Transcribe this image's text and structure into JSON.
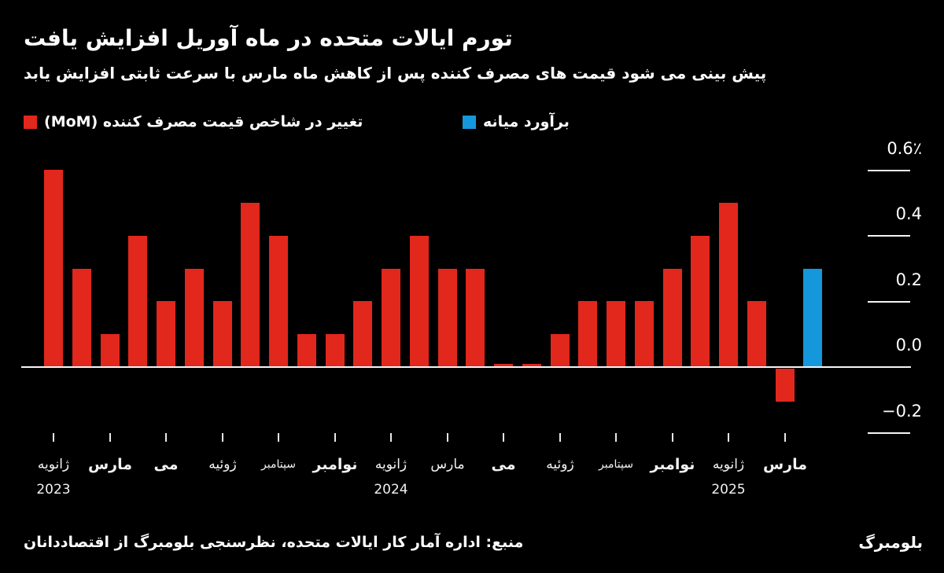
{
  "page": {
    "background": "#000000",
    "accent_red": "#e2271d",
    "accent_blue": "#1597dc"
  },
  "header": {
    "title": "تورم ایالات متحده در ماه آوریل افزایش یافت",
    "subtitle": "پیش بینی می شود قیمت های مصرف کننده پس از کاهش ماه مارس با سرعت ثابتی افزایش یابد"
  },
  "legend": {
    "items": [
      {
        "key": "mom",
        "label": "تغییر در شاخص قیمت مصرف کننده (MoM)",
        "color": "#e2271d"
      },
      {
        "key": "estimate",
        "label": "برآورد میانه",
        "color": "#1597dc"
      }
    ]
  },
  "chart_data": {
    "type": "bar",
    "title": "تورم ایالات متحده در ماه آوریل افزایش یافت",
    "subtitle": "پیش بینی می شود قیمت های مصرف کننده پس از کاهش ماه مارس با سرعت ثابتی افزایش یابد",
    "unit": "%",
    "ylim": [
      -0.25,
      0.65
    ],
    "baseline": 0,
    "grid": false,
    "legend_position": "top-left",
    "axis_side": "right",
    "yticks": [
      {
        "value": 0.6,
        "label": "0.6٪"
      },
      {
        "value": 0.4,
        "label": "0.4"
      },
      {
        "value": 0.2,
        "label": "0.2"
      },
      {
        "value": 0.0,
        "label": "0.0"
      },
      {
        "value": -0.2,
        "label": "−0.2"
      }
    ],
    "series": [
      {
        "key": "mom",
        "name": "تغییر در شاخص قیمت مصرف کننده (MoM)",
        "color": "#e2271d"
      },
      {
        "key": "estimate",
        "name": "برآورد میانه",
        "color": "#1597dc"
      }
    ],
    "bars": [
      {
        "value": 0.6,
        "series": "mom"
      },
      {
        "value": 0.3,
        "series": "mom"
      },
      {
        "value": 0.1,
        "series": "mom"
      },
      {
        "value": 0.4,
        "series": "mom"
      },
      {
        "value": 0.2,
        "series": "mom"
      },
      {
        "value": 0.3,
        "series": "mom"
      },
      {
        "value": 0.2,
        "series": "mom"
      },
      {
        "value": 0.5,
        "series": "mom"
      },
      {
        "value": 0.4,
        "series": "mom"
      },
      {
        "value": 0.1,
        "series": "mom"
      },
      {
        "value": 0.1,
        "series": "mom"
      },
      {
        "value": 0.2,
        "series": "mom"
      },
      {
        "value": 0.3,
        "series": "mom"
      },
      {
        "value": 0.4,
        "series": "mom"
      },
      {
        "value": 0.3,
        "series": "mom"
      },
      {
        "value": 0.3,
        "series": "mom"
      },
      {
        "value": 0.0,
        "series": "mom"
      },
      {
        "value": 0.0,
        "series": "mom"
      },
      {
        "value": 0.1,
        "series": "mom"
      },
      {
        "value": 0.2,
        "series": "mom"
      },
      {
        "value": 0.2,
        "series": "mom"
      },
      {
        "value": 0.2,
        "series": "mom"
      },
      {
        "value": 0.3,
        "series": "mom"
      },
      {
        "value": 0.4,
        "series": "mom"
      },
      {
        "value": 0.5,
        "series": "mom"
      },
      {
        "value": 0.2,
        "series": "mom"
      },
      {
        "value": -0.1,
        "series": "mom"
      },
      {
        "value": 0.3,
        "series": "estimate"
      }
    ],
    "xticks": [
      {
        "bar_index": 0,
        "label": "ژانویه",
        "year": "2023",
        "bold": false,
        "small": false
      },
      {
        "bar_index": 2,
        "label": "مارس",
        "bold": true,
        "small": false
      },
      {
        "bar_index": 4,
        "label": "می",
        "bold": true,
        "small": false
      },
      {
        "bar_index": 6,
        "label": "ژوئیه",
        "bold": false,
        "small": false
      },
      {
        "bar_index": 8,
        "label": "سپتامبر",
        "bold": false,
        "small": true
      },
      {
        "bar_index": 10,
        "label": "نوامبر",
        "bold": true,
        "small": false
      },
      {
        "bar_index": 12,
        "label": "ژانویه",
        "year": "2024",
        "bold": false,
        "small": false
      },
      {
        "bar_index": 14,
        "label": "مارس",
        "bold": false,
        "small": false
      },
      {
        "bar_index": 16,
        "label": "می",
        "bold": true,
        "small": false
      },
      {
        "bar_index": 18,
        "label": "ژوئیه",
        "bold": false,
        "small": false
      },
      {
        "bar_index": 20,
        "label": "سپتامبر",
        "bold": false,
        "small": true
      },
      {
        "bar_index": 22,
        "label": "نوامبر",
        "bold": true,
        "small": false
      },
      {
        "bar_index": 24,
        "label": "ژانویه",
        "year": "2025",
        "bold": false,
        "small": false
      },
      {
        "bar_index": 26,
        "label": "مارس",
        "bold": true,
        "small": false
      }
    ]
  },
  "footer": {
    "source": "منبع: اداره آمار کار ایالات متحده، نظرسنجی بلومبرگ از اقتصاددانان",
    "brand": "بلومبرگ"
  }
}
